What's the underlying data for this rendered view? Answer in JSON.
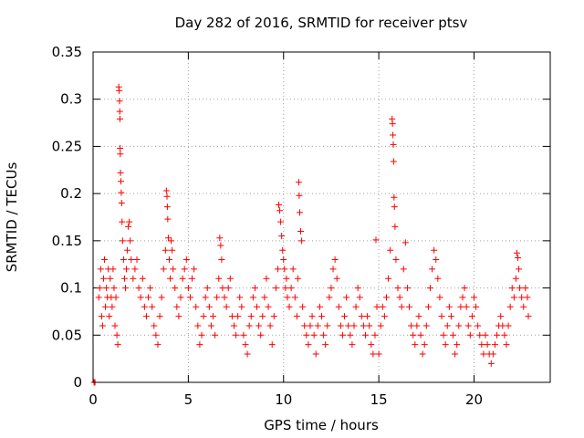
{
  "chart_data": {
    "type": "scatter",
    "title": "Day 282 of 2016, SRMTID for receiver ptsv",
    "xlabel": "GPS time / hours",
    "ylabel": "SRMTID / TECUs",
    "xlim": [
      0,
      24
    ],
    "ylim": [
      0,
      0.35
    ],
    "xticks": [
      0,
      5,
      10,
      15,
      20
    ],
    "xtick_labels": [
      "0",
      "5",
      "10",
      "15",
      "20"
    ],
    "yticks": [
      0,
      0.05,
      0.1,
      0.15,
      0.2,
      0.25,
      0.3,
      0.35
    ],
    "ytick_labels": [
      "0",
      "0.05",
      "0.1",
      "0.15",
      "0.2",
      "0.25",
      "0.3",
      "0.35"
    ],
    "grid": true,
    "marker": "+",
    "color": "#ff0000",
    "series": [
      {
        "name": "SRMTID",
        "points": [
          [
            0.05,
            0.0
          ],
          [
            0.1,
            0.0
          ],
          [
            0.3,
            0.09
          ],
          [
            0.35,
            0.1
          ],
          [
            0.4,
            0.12
          ],
          [
            0.45,
            0.07
          ],
          [
            0.5,
            0.06
          ],
          [
            0.55,
            0.11
          ],
          [
            0.6,
            0.13
          ],
          [
            0.65,
            0.08
          ],
          [
            0.7,
            0.1
          ],
          [
            0.75,
            0.09
          ],
          [
            0.8,
            0.12
          ],
          [
            0.85,
            0.07
          ],
          [
            0.9,
            0.11
          ],
          [
            0.95,
            0.09
          ],
          [
            1.0,
            0.08
          ],
          [
            1.05,
            0.12
          ],
          [
            1.1,
            0.1
          ],
          [
            1.15,
            0.06
          ],
          [
            1.2,
            0.09
          ],
          [
            1.25,
            0.05
          ],
          [
            1.3,
            0.04
          ],
          [
            1.35,
            0.313
          ],
          [
            1.37,
            0.309
          ],
          [
            1.39,
            0.298
          ],
          [
            1.4,
            0.287
          ],
          [
            1.41,
            0.279
          ],
          [
            1.42,
            0.248
          ],
          [
            1.43,
            0.242
          ],
          [
            1.44,
            0.222
          ],
          [
            1.46,
            0.213
          ],
          [
            1.48,
            0.201
          ],
          [
            1.5,
            0.19
          ],
          [
            1.52,
            0.17
          ],
          [
            1.55,
            0.15
          ],
          [
            1.6,
            0.13
          ],
          [
            1.65,
            0.11
          ],
          [
            1.7,
            0.1
          ],
          [
            1.75,
            0.12
          ],
          [
            1.8,
            0.14
          ],
          [
            1.85,
            0.165
          ],
          [
            1.9,
            0.17
          ],
          [
            1.95,
            0.15
          ],
          [
            2.0,
            0.13
          ],
          [
            2.1,
            0.11
          ],
          [
            2.2,
            0.12
          ],
          [
            2.3,
            0.13
          ],
          [
            2.4,
            0.1
          ],
          [
            2.5,
            0.09
          ],
          [
            2.6,
            0.11
          ],
          [
            2.7,
            0.08
          ],
          [
            2.8,
            0.07
          ],
          [
            2.9,
            0.09
          ],
          [
            3.0,
            0.1
          ],
          [
            3.1,
            0.08
          ],
          [
            3.2,
            0.06
          ],
          [
            3.3,
            0.05
          ],
          [
            3.4,
            0.04
          ],
          [
            3.5,
            0.07
          ],
          [
            3.6,
            0.09
          ],
          [
            3.7,
            0.12
          ],
          [
            3.8,
            0.14
          ],
          [
            3.85,
            0.203
          ],
          [
            3.88,
            0.197
          ],
          [
            3.9,
            0.186
          ],
          [
            3.92,
            0.173
          ],
          [
            3.95,
            0.153
          ],
          [
            4.0,
            0.13
          ],
          [
            4.05,
            0.11
          ],
          [
            4.1,
            0.15
          ],
          [
            4.15,
            0.14
          ],
          [
            4.2,
            0.12
          ],
          [
            4.3,
            0.1
          ],
          [
            4.4,
            0.08
          ],
          [
            4.5,
            0.07
          ],
          [
            4.6,
            0.09
          ],
          [
            4.7,
            0.11
          ],
          [
            4.8,
            0.12
          ],
          [
            4.9,
            0.13
          ],
          [
            5.0,
            0.1
          ],
          [
            5.1,
            0.09
          ],
          [
            5.2,
            0.11
          ],
          [
            5.3,
            0.12
          ],
          [
            5.4,
            0.08
          ],
          [
            5.5,
            0.06
          ],
          [
            5.6,
            0.04
          ],
          [
            5.7,
            0.05
          ],
          [
            5.8,
            0.07
          ],
          [
            5.9,
            0.09
          ],
          [
            6.0,
            0.1
          ],
          [
            6.1,
            0.08
          ],
          [
            6.2,
            0.06
          ],
          [
            6.3,
            0.07
          ],
          [
            6.4,
            0.05
          ],
          [
            6.5,
            0.09
          ],
          [
            6.6,
            0.11
          ],
          [
            6.65,
            0.153
          ],
          [
            6.7,
            0.145
          ],
          [
            6.75,
            0.13
          ],
          [
            6.8,
            0.1
          ],
          [
            6.9,
            0.09
          ],
          [
            7.0,
            0.08
          ],
          [
            7.1,
            0.1
          ],
          [
            7.2,
            0.11
          ],
          [
            7.3,
            0.07
          ],
          [
            7.4,
            0.06
          ],
          [
            7.5,
            0.05
          ],
          [
            7.6,
            0.07
          ],
          [
            7.7,
            0.09
          ],
          [
            7.8,
            0.08
          ],
          [
            7.9,
            0.05
          ],
          [
            8.0,
            0.04
          ],
          [
            8.1,
            0.03
          ],
          [
            8.2,
            0.06
          ],
          [
            8.3,
            0.07
          ],
          [
            8.4,
            0.09
          ],
          [
            8.5,
            0.1
          ],
          [
            8.6,
            0.08
          ],
          [
            8.7,
            0.06
          ],
          [
            8.8,
            0.05
          ],
          [
            8.9,
            0.07
          ],
          [
            9.0,
            0.09
          ],
          [
            9.1,
            0.11
          ],
          [
            9.2,
            0.08
          ],
          [
            9.3,
            0.06
          ],
          [
            9.4,
            0.04
          ],
          [
            9.5,
            0.07
          ],
          [
            9.6,
            0.1
          ],
          [
            9.7,
            0.12
          ],
          [
            9.75,
            0.188
          ],
          [
            9.8,
            0.182
          ],
          [
            9.85,
            0.17
          ],
          [
            9.9,
            0.155
          ],
          [
            9.95,
            0.14
          ],
          [
            10.0,
            0.13
          ],
          [
            10.05,
            0.12
          ],
          [
            10.1,
            0.1
          ],
          [
            10.15,
            0.11
          ],
          [
            10.2,
            0.09
          ],
          [
            10.3,
            0.08
          ],
          [
            10.4,
            0.1
          ],
          [
            10.5,
            0.12
          ],
          [
            10.6,
            0.09
          ],
          [
            10.7,
            0.07
          ],
          [
            10.75,
            0.11
          ],
          [
            10.8,
            0.212
          ],
          [
            10.82,
            0.198
          ],
          [
            10.85,
            0.18
          ],
          [
            10.9,
            0.16
          ],
          [
            10.95,
            0.15
          ],
          [
            11.0,
            0.08
          ],
          [
            11.1,
            0.06
          ],
          [
            11.2,
            0.05
          ],
          [
            11.3,
            0.04
          ],
          [
            11.4,
            0.06
          ],
          [
            11.5,
            0.07
          ],
          [
            11.6,
            0.05
          ],
          [
            11.7,
            0.03
          ],
          [
            11.8,
            0.06
          ],
          [
            11.9,
            0.08
          ],
          [
            12.0,
            0.07
          ],
          [
            12.1,
            0.05
          ],
          [
            12.2,
            0.04
          ],
          [
            12.3,
            0.06
          ],
          [
            12.4,
            0.09
          ],
          [
            12.5,
            0.1
          ],
          [
            12.6,
            0.12
          ],
          [
            12.7,
            0.13
          ],
          [
            12.8,
            0.11
          ],
          [
            12.9,
            0.08
          ],
          [
            13.0,
            0.06
          ],
          [
            13.1,
            0.05
          ],
          [
            13.2,
            0.07
          ],
          [
            13.3,
            0.09
          ],
          [
            13.4,
            0.06
          ],
          [
            13.5,
            0.05
          ],
          [
            13.6,
            0.04
          ],
          [
            13.7,
            0.06
          ],
          [
            13.8,
            0.08
          ],
          [
            13.9,
            0.1
          ],
          [
            14.0,
            0.09
          ],
          [
            14.1,
            0.07
          ],
          [
            14.2,
            0.06
          ],
          [
            14.3,
            0.05
          ],
          [
            14.4,
            0.07
          ],
          [
            14.5,
            0.06
          ],
          [
            14.6,
            0.04
          ],
          [
            14.7,
            0.03
          ],
          [
            14.8,
            0.05
          ],
          [
            14.85,
            0.151
          ],
          [
            14.9,
            0.08
          ],
          [
            15.0,
            0.03
          ],
          [
            15.1,
            0.06
          ],
          [
            15.2,
            0.08
          ],
          [
            15.3,
            0.07
          ],
          [
            15.4,
            0.09
          ],
          [
            15.5,
            0.11
          ],
          [
            15.6,
            0.14
          ],
          [
            15.7,
            0.279
          ],
          [
            15.72,
            0.274
          ],
          [
            15.74,
            0.262
          ],
          [
            15.76,
            0.252
          ],
          [
            15.78,
            0.234
          ],
          [
            15.8,
            0.196
          ],
          [
            15.82,
            0.186
          ],
          [
            15.85,
            0.165
          ],
          [
            15.9,
            0.13
          ],
          [
            16.0,
            0.1
          ],
          [
            16.1,
            0.09
          ],
          [
            16.2,
            0.08
          ],
          [
            16.3,
            0.12
          ],
          [
            16.4,
            0.148
          ],
          [
            16.5,
            0.1
          ],
          [
            16.6,
            0.08
          ],
          [
            16.7,
            0.06
          ],
          [
            16.8,
            0.05
          ],
          [
            16.9,
            0.04
          ],
          [
            17.0,
            0.06
          ],
          [
            17.1,
            0.07
          ],
          [
            17.2,
            0.05
          ],
          [
            17.3,
            0.03
          ],
          [
            17.4,
            0.04
          ],
          [
            17.5,
            0.06
          ],
          [
            17.6,
            0.08
          ],
          [
            17.7,
            0.1
          ],
          [
            17.8,
            0.12
          ],
          [
            17.9,
            0.14
          ],
          [
            18.0,
            0.13
          ],
          [
            18.1,
            0.11
          ],
          [
            18.2,
            0.09
          ],
          [
            18.3,
            0.07
          ],
          [
            18.4,
            0.05
          ],
          [
            18.5,
            0.04
          ],
          [
            18.6,
            0.06
          ],
          [
            18.7,
            0.08
          ],
          [
            18.8,
            0.07
          ],
          [
            18.9,
            0.05
          ],
          [
            19.0,
            0.03
          ],
          [
            19.1,
            0.04
          ],
          [
            19.2,
            0.06
          ],
          [
            19.3,
            0.08
          ],
          [
            19.4,
            0.09
          ],
          [
            19.5,
            0.1
          ],
          [
            19.6,
            0.08
          ],
          [
            19.7,
            0.06
          ],
          [
            19.8,
            0.05
          ],
          [
            19.9,
            0.07
          ],
          [
            20.0,
            0.09
          ],
          [
            20.1,
            0.08
          ],
          [
            20.2,
            0.06
          ],
          [
            20.3,
            0.05
          ],
          [
            20.4,
            0.04
          ],
          [
            20.5,
            0.03
          ],
          [
            20.6,
            0.05
          ],
          [
            20.7,
            0.04
          ],
          [
            20.8,
            0.03
          ],
          [
            20.9,
            0.02
          ],
          [
            21.0,
            0.03
          ],
          [
            21.1,
            0.04
          ],
          [
            21.2,
            0.05
          ],
          [
            21.3,
            0.06
          ],
          [
            21.4,
            0.07
          ],
          [
            21.5,
            0.06
          ],
          [
            21.6,
            0.05
          ],
          [
            21.7,
            0.04
          ],
          [
            21.8,
            0.06
          ],
          [
            21.9,
            0.08
          ],
          [
            22.0,
            0.1
          ],
          [
            22.1,
            0.09
          ],
          [
            22.2,
            0.11
          ],
          [
            22.25,
            0.137
          ],
          [
            22.3,
            0.132
          ],
          [
            22.35,
            0.12
          ],
          [
            22.4,
            0.1
          ],
          [
            22.5,
            0.09
          ],
          [
            22.6,
            0.08
          ],
          [
            22.7,
            0.1
          ],
          [
            22.8,
            0.09
          ],
          [
            22.85,
            0.07
          ]
        ]
      }
    ]
  }
}
